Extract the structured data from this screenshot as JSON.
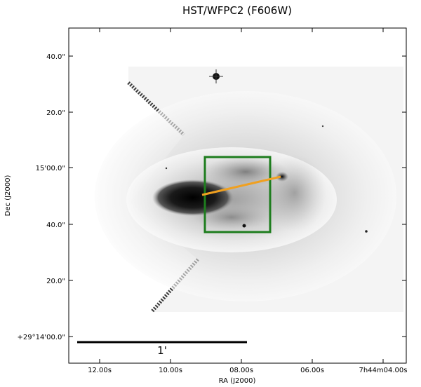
{
  "figure": {
    "title": "HST/WFPC2 (F606W)",
    "xlabel": "RA (J2000)",
    "ylabel": "Dec (J2000)",
    "ra_ticks": [
      "12.00s",
      "10.00s",
      "08.00s",
      "06.00s",
      "7h44m04.00s"
    ],
    "dec_ticks": [
      "40.0\"",
      "20.0\"",
      "15'00.0\"",
      "40.0\"",
      "20.0\"",
      "+29°14'00.0\""
    ],
    "scalebar_label": "1'",
    "colors": {
      "box": "#1e7d1e",
      "slit": "#f0a020",
      "galaxy": "#111111"
    }
  }
}
